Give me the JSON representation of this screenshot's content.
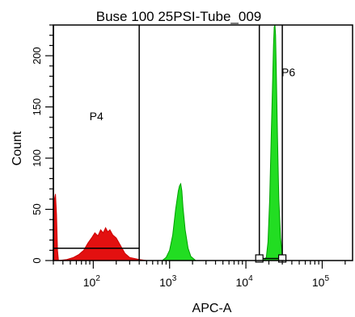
{
  "chart_data": {
    "type": "area",
    "title": "Buse 100 25PSI-Tube_009",
    "xlabel": "APC-A",
    "ylabel": "Count",
    "x_scale": "log",
    "xlim": [
      30,
      250000
    ],
    "ylim": [
      0,
      230
    ],
    "x_ticks": [
      {
        "value": 100,
        "base": "10",
        "exp": "2"
      },
      {
        "value": 1000,
        "base": "10",
        "exp": "3"
      },
      {
        "value": 10000,
        "base": "10",
        "exp": "4"
      },
      {
        "value": 100000,
        "base": "10",
        "exp": "5"
      }
    ],
    "y_ticks": [
      0,
      50,
      100,
      150,
      200
    ],
    "grid": false,
    "series": [
      {
        "color": "#e31010",
        "edge": "#cc0000",
        "points": [
          [
            30,
            0
          ],
          [
            31,
            60
          ],
          [
            32,
            65
          ],
          [
            33,
            45
          ],
          [
            34,
            10
          ],
          [
            35,
            0
          ],
          [
            45,
            1
          ],
          [
            55,
            3
          ],
          [
            65,
            6
          ],
          [
            75,
            10
          ],
          [
            85,
            17
          ],
          [
            95,
            22
          ],
          [
            105,
            27
          ],
          [
            115,
            24
          ],
          [
            125,
            30
          ],
          [
            135,
            27
          ],
          [
            145,
            32
          ],
          [
            155,
            28
          ],
          [
            165,
            30
          ],
          [
            180,
            25
          ],
          [
            200,
            22
          ],
          [
            230,
            14
          ],
          [
            260,
            7
          ],
          [
            300,
            3
          ],
          [
            400,
            1
          ],
          [
            500,
            0
          ]
        ]
      },
      {
        "color": "#22dd22",
        "edge": "#00a000",
        "points": [
          [
            600,
            0
          ],
          [
            800,
            0
          ],
          [
            900,
            3
          ],
          [
            1000,
            10
          ],
          [
            1100,
            25
          ],
          [
            1200,
            50
          ],
          [
            1300,
            68
          ],
          [
            1350,
            73
          ],
          [
            1400,
            75
          ],
          [
            1450,
            68
          ],
          [
            1500,
            52
          ],
          [
            1600,
            30
          ],
          [
            1750,
            12
          ],
          [
            1900,
            4
          ],
          [
            2200,
            0
          ]
        ]
      },
      {
        "color": "#22dd22",
        "edge": "#00a000",
        "points": [
          [
            15000,
            0
          ],
          [
            17000,
            0
          ],
          [
            18500,
            3
          ],
          [
            19500,
            18
          ],
          [
            20500,
            60
          ],
          [
            21500,
            125
          ],
          [
            22500,
            180
          ],
          [
            23000,
            210
          ],
          [
            23500,
            228
          ],
          [
            24000,
            230
          ],
          [
            24500,
            220
          ],
          [
            25000,
            188
          ],
          [
            26000,
            120
          ],
          [
            27000,
            60
          ],
          [
            28500,
            22
          ],
          [
            30000,
            6
          ],
          [
            33000,
            0
          ]
        ]
      }
    ],
    "gates": [
      {
        "label": "P4",
        "x_range": [
          30,
          400
        ],
        "y_level": 12,
        "label_at": [
          110,
          137
        ]
      },
      {
        "label": "P6",
        "x_range": [
          15000,
          30000
        ],
        "y_level": 2,
        "label_at": [
          36000,
          180
        ]
      }
    ]
  }
}
